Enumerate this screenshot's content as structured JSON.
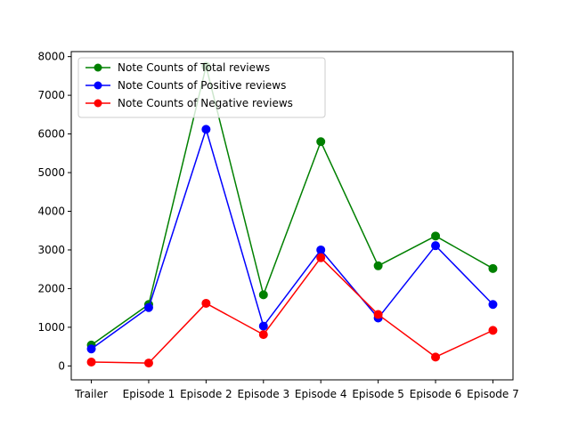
{
  "chart_data": {
    "type": "line",
    "categories": [
      "Trailer",
      "Episode 1",
      "Episode 2",
      "Episode 3",
      "Episode 4",
      "Episode 5",
      "Episode 6",
      "Episode 7"
    ],
    "series": [
      {
        "name": "Note Counts of Total reviews",
        "color": "#008000",
        "values": [
          540,
          1590,
          7750,
          1840,
          5800,
          2590,
          3360,
          2520
        ]
      },
      {
        "name": "Note Counts of Positive reviews",
        "color": "#0000ff",
        "values": [
          440,
          1510,
          6120,
          1030,
          3000,
          1240,
          3110,
          1590
        ]
      },
      {
        "name": "Note Counts of Negative reviews",
        "color": "#ff0000",
        "values": [
          100,
          75,
          1620,
          810,
          2800,
          1330,
          230,
          920
        ]
      }
    ],
    "yticks": [
      0,
      1000,
      2000,
      3000,
      4000,
      5000,
      6000,
      7000,
      8000
    ],
    "ylim": [
      -360,
      8130
    ],
    "xlim": [
      -0.35,
      7.35
    ],
    "legend_position": "upper-left",
    "grid": false,
    "title": "",
    "xlabel": "",
    "ylabel": ""
  }
}
